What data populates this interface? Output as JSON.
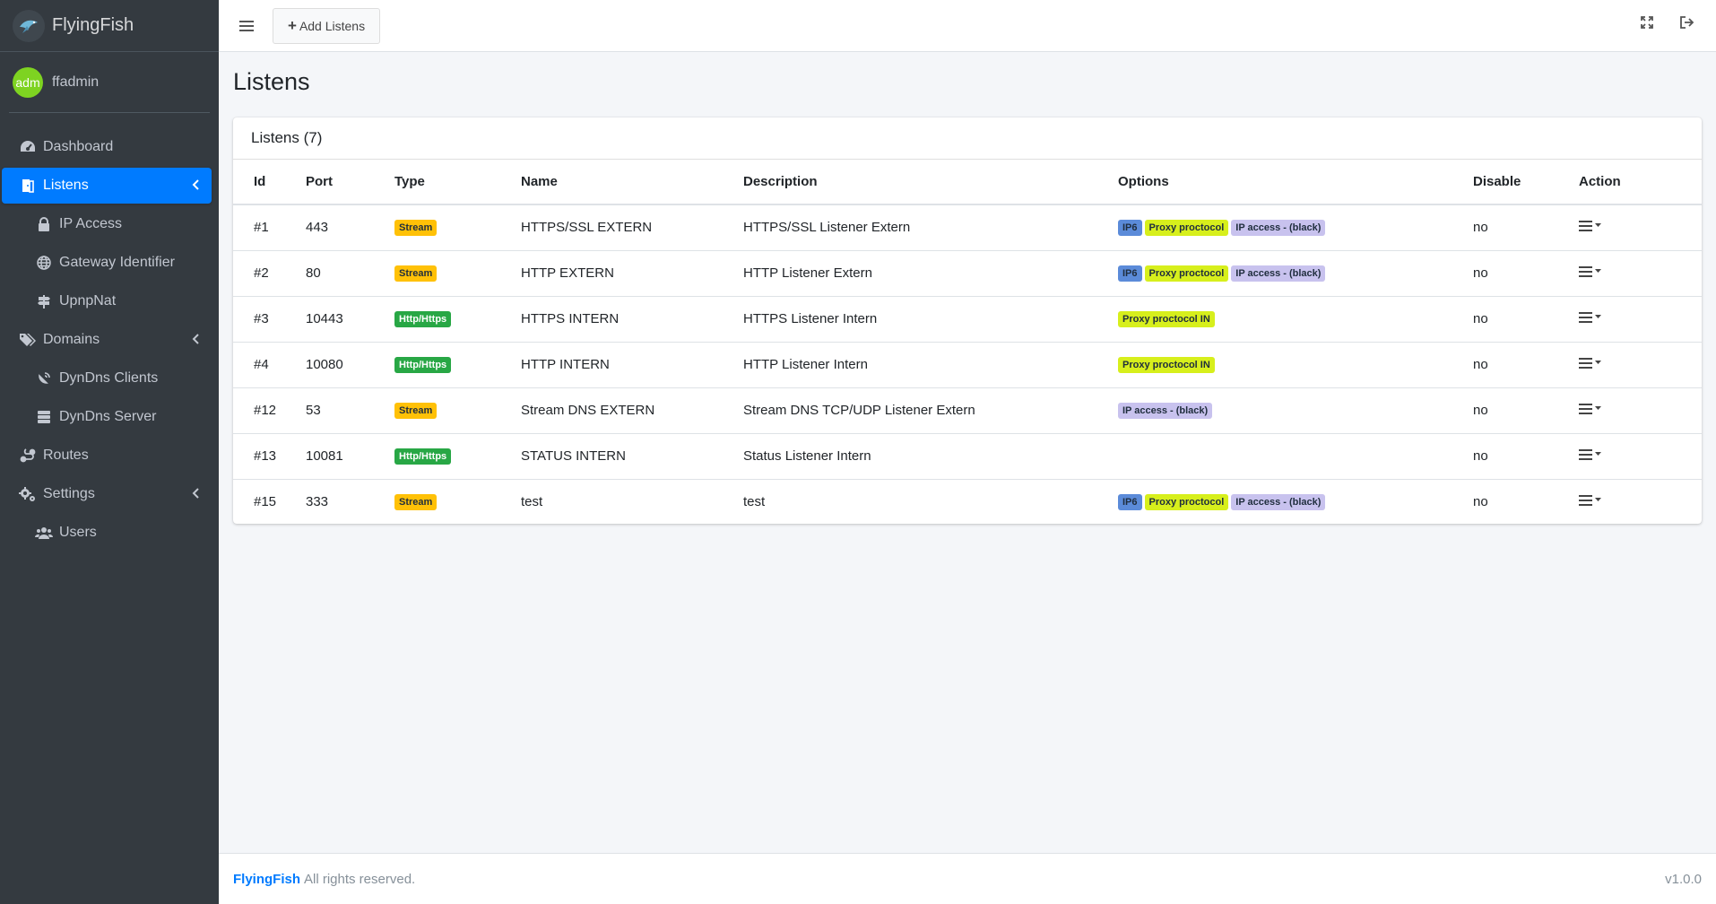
{
  "brand": {
    "name": "FlyingFish"
  },
  "user": {
    "avatar_text": "adm",
    "name": "ffadmin"
  },
  "sidebar": {
    "items": [
      {
        "label": "Dashboard",
        "icon": "dashboard-icon",
        "level": 0
      },
      {
        "label": "Listens",
        "icon": "door-icon",
        "level": 0,
        "active": true
      },
      {
        "label": "IP Access",
        "icon": "lock-icon",
        "level": 1
      },
      {
        "label": "Gateway Identifier",
        "icon": "globe-icon",
        "level": 1
      },
      {
        "label": "UpnpNat",
        "icon": "signpost-icon",
        "level": 1
      },
      {
        "label": "Domains",
        "icon": "tags-icon",
        "level": 0
      },
      {
        "label": "DynDns Clients",
        "icon": "satellite-dish-icon",
        "level": 1
      },
      {
        "label": "DynDns Server",
        "icon": "server-icon",
        "level": 1
      },
      {
        "label": "Routes",
        "icon": "route-icon",
        "level": 0
      },
      {
        "label": "Settings",
        "icon": "gears-icon",
        "level": 0
      },
      {
        "label": "Users",
        "icon": "users-icon",
        "level": 1
      }
    ]
  },
  "toolbar": {
    "add_label": "Add Listens"
  },
  "page": {
    "title": "Listens"
  },
  "card": {
    "title": "Listens (7)",
    "columns": [
      "Id",
      "Port",
      "Type",
      "Name",
      "Description",
      "Options",
      "Disable",
      "Action"
    ],
    "rows": [
      {
        "id": "#1",
        "port": "443",
        "type": "Stream",
        "name": "HTTPS/SSL EXTERN",
        "description": "HTTPS/SSL Listener Extern",
        "options": [
          "IP6",
          "Proxy proctocol",
          "IP access - (black)"
        ],
        "disable": "no"
      },
      {
        "id": "#2",
        "port": "80",
        "type": "Stream",
        "name": "HTTP EXTERN",
        "description": "HTTP Listener Extern",
        "options": [
          "IP6",
          "Proxy proctocol",
          "IP access - (black)"
        ],
        "disable": "no"
      },
      {
        "id": "#3",
        "port": "10443",
        "type": "Http/Https",
        "name": "HTTPS INTERN",
        "description": "HTTPS Listener Intern",
        "options": [
          "Proxy proctocol IN"
        ],
        "disable": "no"
      },
      {
        "id": "#4",
        "port": "10080",
        "type": "Http/Https",
        "name": "HTTP INTERN",
        "description": "HTTP Listener Intern",
        "options": [
          "Proxy proctocol IN"
        ],
        "disable": "no"
      },
      {
        "id": "#12",
        "port": "53",
        "type": "Stream",
        "name": "Stream DNS EXTERN",
        "description": "Stream DNS TCP/UDP Listener Extern",
        "options": [
          "IP access - (black)"
        ],
        "disable": "no"
      },
      {
        "id": "#13",
        "port": "10081",
        "type": "Http/Https",
        "name": "STATUS INTERN",
        "description": "Status Listener Intern",
        "options": [],
        "disable": "no"
      },
      {
        "id": "#15",
        "port": "333",
        "type": "Stream",
        "name": "test",
        "description": "test",
        "options": [
          "IP6",
          "Proxy proctocol",
          "IP access - (black)"
        ],
        "disable": "no"
      }
    ]
  },
  "footer": {
    "brand": "FlyingFish",
    "text": "All rights reserved.",
    "version": "v1.0.0"
  },
  "colors": {
    "accent": "#007bff",
    "sidebar_bg": "#343a40",
    "stream_badge": "#ffc107",
    "http_badge": "#28a745",
    "ip6_badge": "#5b8bd9",
    "proxy_badge": "#d7ef1c",
    "ipaccess_badge": "#c8c2ee"
  }
}
